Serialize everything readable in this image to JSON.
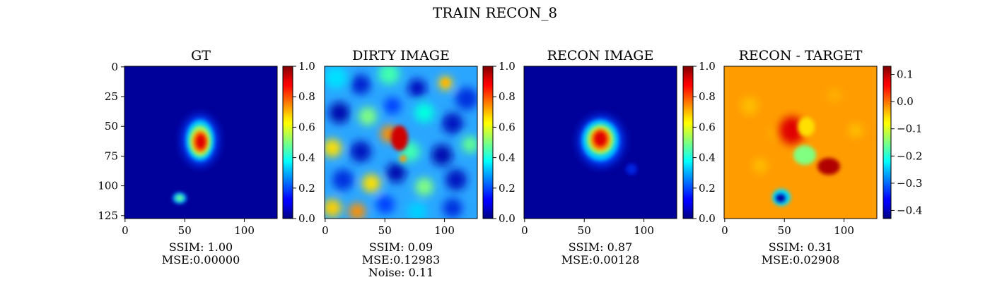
{
  "figure": {
    "suptitle": "TRAIN RECON_8"
  },
  "chart_data": [
    {
      "type": "heatmap",
      "title": "GT",
      "colormap": "jet",
      "xticks": [
        0,
        50,
        100
      ],
      "yticks": [
        0,
        25,
        50,
        75,
        100,
        125
      ],
      "xlim": [
        0,
        127
      ],
      "ylim": [
        127,
        0
      ],
      "colorbar": {
        "range": [
          0.0,
          1.0
        ],
        "ticks": [
          "0.0",
          "0.2",
          "0.4",
          "0.6",
          "0.8",
          "1.0"
        ]
      },
      "caption": [
        "SSIM: 1.00",
        "MSE:0.00000"
      ]
    },
    {
      "type": "heatmap",
      "title": "DIRTY IMAGE",
      "colormap": "jet",
      "xticks": [
        0,
        50,
        100
      ],
      "xlim": [
        0,
        127
      ],
      "ylim": [
        127,
        0
      ],
      "colorbar": {
        "range": [
          0.0,
          1.0
        ],
        "ticks": [
          "0.0",
          "0.2",
          "0.4",
          "0.6",
          "0.8",
          "1.0"
        ]
      },
      "caption": [
        "SSIM: 0.09",
        "MSE:0.12983",
        "Noise: 0.11"
      ]
    },
    {
      "type": "heatmap",
      "title": "RECON IMAGE",
      "colormap": "jet",
      "xticks": [
        0,
        50,
        100
      ],
      "xlim": [
        0,
        127
      ],
      "ylim": [
        127,
        0
      ],
      "colorbar": {
        "range": [
          0.0,
          1.0
        ],
        "ticks": [
          "0.0",
          "0.2",
          "0.4",
          "0.6",
          "0.8",
          "1.0"
        ]
      },
      "caption": [
        "SSIM: 0.87",
        "MSE:0.00128"
      ]
    },
    {
      "type": "heatmap",
      "title": "RECON - TARGET",
      "colormap": "jet",
      "xticks": [
        0,
        50,
        100
      ],
      "xlim": [
        0,
        127
      ],
      "ylim": [
        127,
        0
      ],
      "colorbar": {
        "range": [
          -0.43,
          0.13
        ],
        "ticks": [
          "0.1",
          "0.0",
          "−0.1",
          "−0.2",
          "−0.3",
          "−0.4"
        ]
      },
      "caption": [
        "SSIM: 0.31",
        "MSE:0.02908"
      ]
    }
  ]
}
